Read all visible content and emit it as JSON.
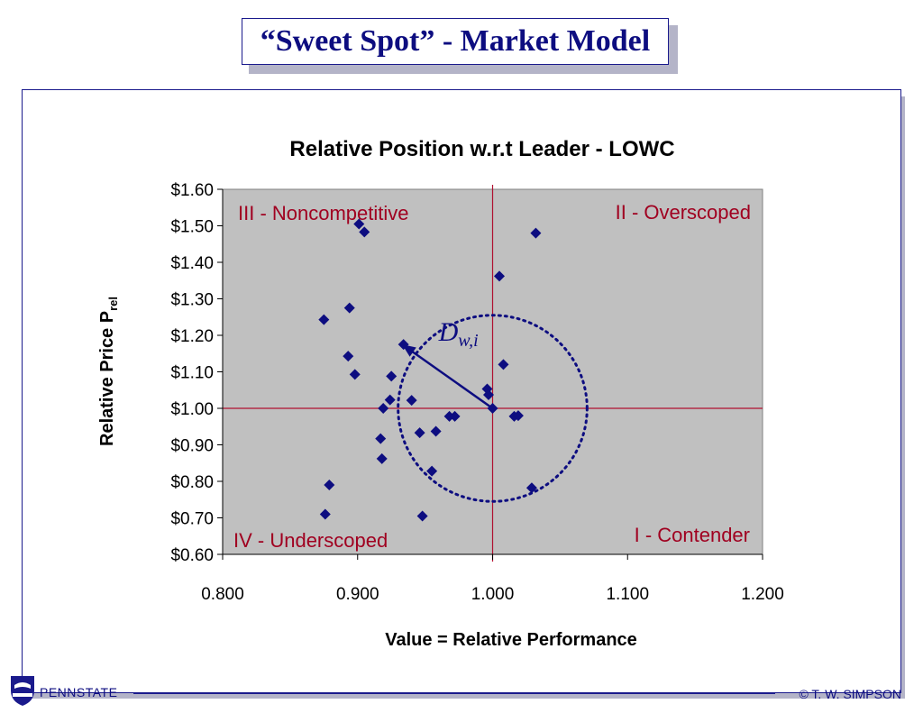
{
  "slide": {
    "title": "“Sweet Spot” - Market Model",
    "footer_left": "PENNSTATE",
    "footer_right": "© T. W. SIMPSON"
  },
  "colors": {
    "plot_bg": "#c0c0c0",
    "marker": "#0d0d80",
    "quadrant_line": "#b01030",
    "quadrant_label": "#a00020",
    "circle": "#0d0d80"
  },
  "chart_data": {
    "type": "scatter",
    "title": "Relative Position w.r.t Leader - LOWC",
    "xlabel": "Value = Relative Performance",
    "ylabel": "Relative Price P",
    "ylabel_sub": "rel",
    "xlim": [
      0.8,
      1.2
    ],
    "ylim": [
      0.6,
      1.6
    ],
    "x_ticks": [
      "0.800",
      "0.900",
      "1.000",
      "1.100",
      "1.200"
    ],
    "y_ticks": [
      "$0.60",
      "$0.70",
      "$0.80",
      "$0.90",
      "$1.00",
      "$1.10",
      "$1.20",
      "$1.30",
      "$1.40",
      "$1.50",
      "$1.60"
    ],
    "grid": false,
    "reference_lines": {
      "x": 1.0,
      "y": 1.0
    },
    "quadrant_labels": {
      "top_left": "III - Noncompetitive",
      "top_right": "II - Overscoped",
      "bottom_left": "IV - Underscoped",
      "bottom_right": "I - Contender"
    },
    "annotation": {
      "text": "D",
      "sub": "w,i"
    },
    "distance_arrow": {
      "from": [
        1.0,
        1.0
      ],
      "to": [
        0.933,
        1.175
      ]
    },
    "circle": {
      "cx": 1.0,
      "cy": 1.0,
      "rx": 0.07,
      "ry": 0.255
    },
    "points": [
      {
        "x": 0.901,
        "y": 1.505
      },
      {
        "x": 0.905,
        "y": 1.483
      },
      {
        "x": 1.032,
        "y": 1.48
      },
      {
        "x": 1.005,
        "y": 1.362
      },
      {
        "x": 0.894,
        "y": 1.275
      },
      {
        "x": 0.875,
        "y": 1.243
      },
      {
        "x": 0.934,
        "y": 1.175
      },
      {
        "x": 0.893,
        "y": 1.143
      },
      {
        "x": 1.008,
        "y": 1.12
      },
      {
        "x": 0.898,
        "y": 1.093
      },
      {
        "x": 0.925,
        "y": 1.088
      },
      {
        "x": 0.996,
        "y": 1.053
      },
      {
        "x": 0.997,
        "y": 1.037
      },
      {
        "x": 0.924,
        "y": 1.023
      },
      {
        "x": 0.94,
        "y": 1.022
      },
      {
        "x": 0.919,
        "y": 1.0
      },
      {
        "x": 1.0,
        "y": 1.0
      },
      {
        "x": 0.968,
        "y": 0.978
      },
      {
        "x": 0.972,
        "y": 0.978
      },
      {
        "x": 1.016,
        "y": 0.978
      },
      {
        "x": 1.019,
        "y": 0.98
      },
      {
        "x": 0.946,
        "y": 0.933
      },
      {
        "x": 0.958,
        "y": 0.937
      },
      {
        "x": 0.917,
        "y": 0.917
      },
      {
        "x": 0.918,
        "y": 0.862
      },
      {
        "x": 0.955,
        "y": 0.828
      },
      {
        "x": 1.029,
        "y": 0.782
      },
      {
        "x": 0.879,
        "y": 0.79
      },
      {
        "x": 0.876,
        "y": 0.71
      },
      {
        "x": 0.948,
        "y": 0.705
      }
    ]
  }
}
